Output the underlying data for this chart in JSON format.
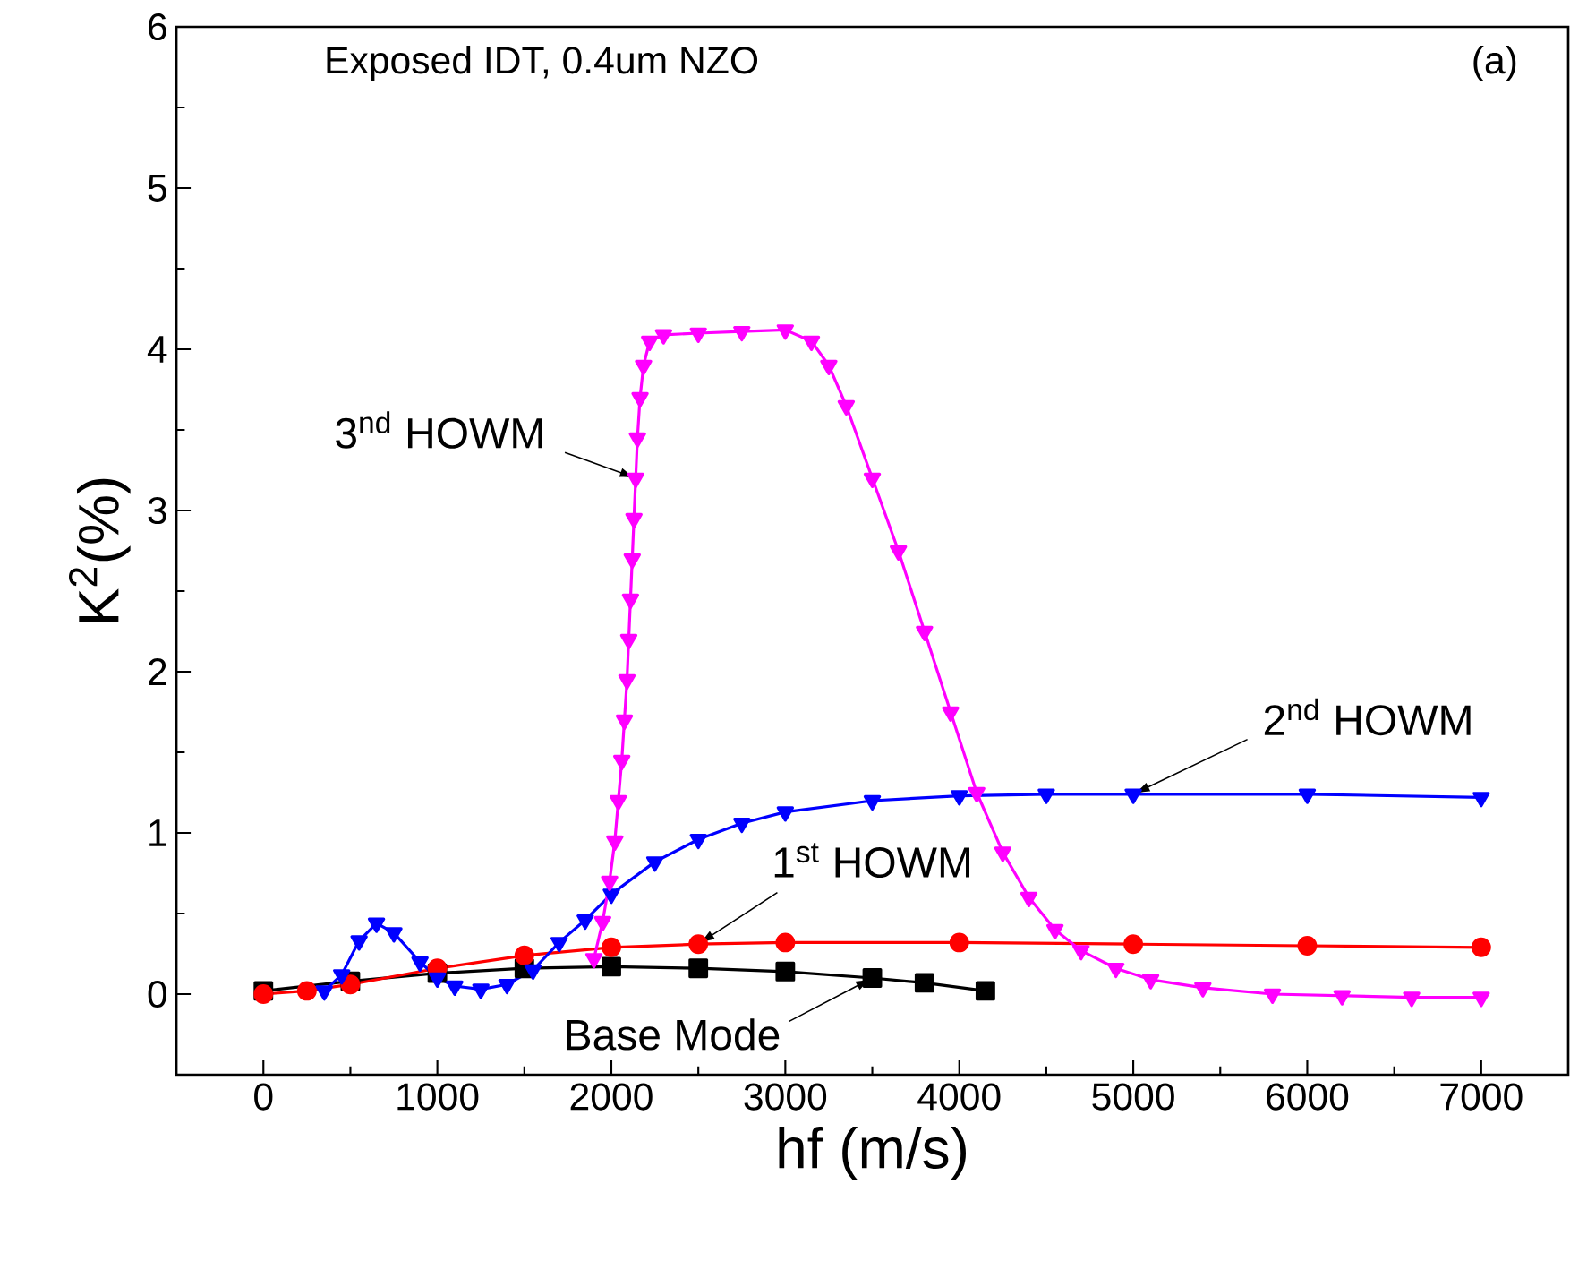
{
  "chart_data": {
    "type": "line",
    "xlabel": "hf (m/s)",
    "ylabel": "K$^{2}$(%)",
    "xlim": [
      -500,
      7500
    ],
    "ylim": [
      -0.5,
      6
    ],
    "xticks": [
      0,
      1000,
      2000,
      3000,
      4000,
      5000,
      6000,
      7000
    ],
    "yticks": [
      0,
      1,
      2,
      3,
      4,
      5,
      6
    ],
    "annotations": [
      "Exposed IDT, 0.4um NZO",
      "(a)",
      {
        "text": "3$^{nd}$ HOWM",
        "x": 2144,
        "y": 3.2
      },
      {
        "text": "2$^{nd}$ HOWM",
        "x": 5000,
        "y": 1.24
      },
      {
        "text": "1$^{st}$ HOWM",
        "x": 2500,
        "y": 0.31
      },
      {
        "text": "Base Mode",
        "x": 3500,
        "y": 0.1
      }
    ],
    "series": [
      {
        "color": "#000000",
        "marker": "square",
        "x": [
          0,
          500,
          1000,
          1500,
          2000,
          2500,
          3000,
          3500,
          3800,
          4150
        ],
        "values": [
          0.02,
          0.08,
          0.13,
          0.16,
          0.17,
          0.16,
          0.14,
          0.1,
          0.07,
          0.02
        ]
      },
      {
        "color": "#ff0000",
        "marker": "circle",
        "x": [
          0,
          250,
          500,
          1000,
          1500,
          2000,
          2500,
          3000,
          4000,
          5000,
          6000,
          7000
        ],
        "values": [
          0.0,
          0.02,
          0.06,
          0.16,
          0.24,
          0.29,
          0.31,
          0.32,
          0.32,
          0.31,
          0.3,
          0.29
        ]
      },
      {
        "color": "#0000ff",
        "marker": "triangle",
        "x": [
          350,
          450,
          550,
          650,
          750,
          900,
          1000,
          1100,
          1250,
          1400,
          1550,
          1700,
          1850,
          2000,
          2250,
          2500,
          2750,
          3000,
          3500,
          4000,
          4500,
          5000,
          6000,
          7000
        ],
        "values": [
          0.02,
          0.12,
          0.33,
          0.44,
          0.38,
          0.2,
          0.1,
          0.05,
          0.03,
          0.06,
          0.15,
          0.32,
          0.46,
          0.62,
          0.82,
          0.96,
          1.06,
          1.13,
          1.2,
          1.23,
          1.24,
          1.24,
          1.24,
          1.22
        ]
      },
      {
        "color": "#ff00ff",
        "marker": "triangle",
        "x": [
          1900,
          1950,
          1990,
          2020,
          2040,
          2060,
          2075,
          2090,
          2100,
          2110,
          2120,
          2130,
          2140,
          2150,
          2165,
          2185,
          2220,
          2300,
          2500,
          2750,
          3000,
          3150,
          3250,
          3350,
          3500,
          3650,
          3800,
          3950,
          4100,
          4250,
          4400,
          4550,
          4700,
          4900,
          5100,
          5400,
          5800,
          6200,
          6600,
          7000
        ],
        "values": [
          0.22,
          0.45,
          0.7,
          0.95,
          1.2,
          1.45,
          1.7,
          1.95,
          2.2,
          2.45,
          2.7,
          2.95,
          3.2,
          3.45,
          3.7,
          3.9,
          4.05,
          4.09,
          4.1,
          4.11,
          4.12,
          4.05,
          3.9,
          3.65,
          3.2,
          2.75,
          2.25,
          1.75,
          1.25,
          0.88,
          0.6,
          0.4,
          0.27,
          0.16,
          0.09,
          0.04,
          0.0,
          -0.01,
          -0.02,
          -0.02
        ]
      }
    ]
  }
}
